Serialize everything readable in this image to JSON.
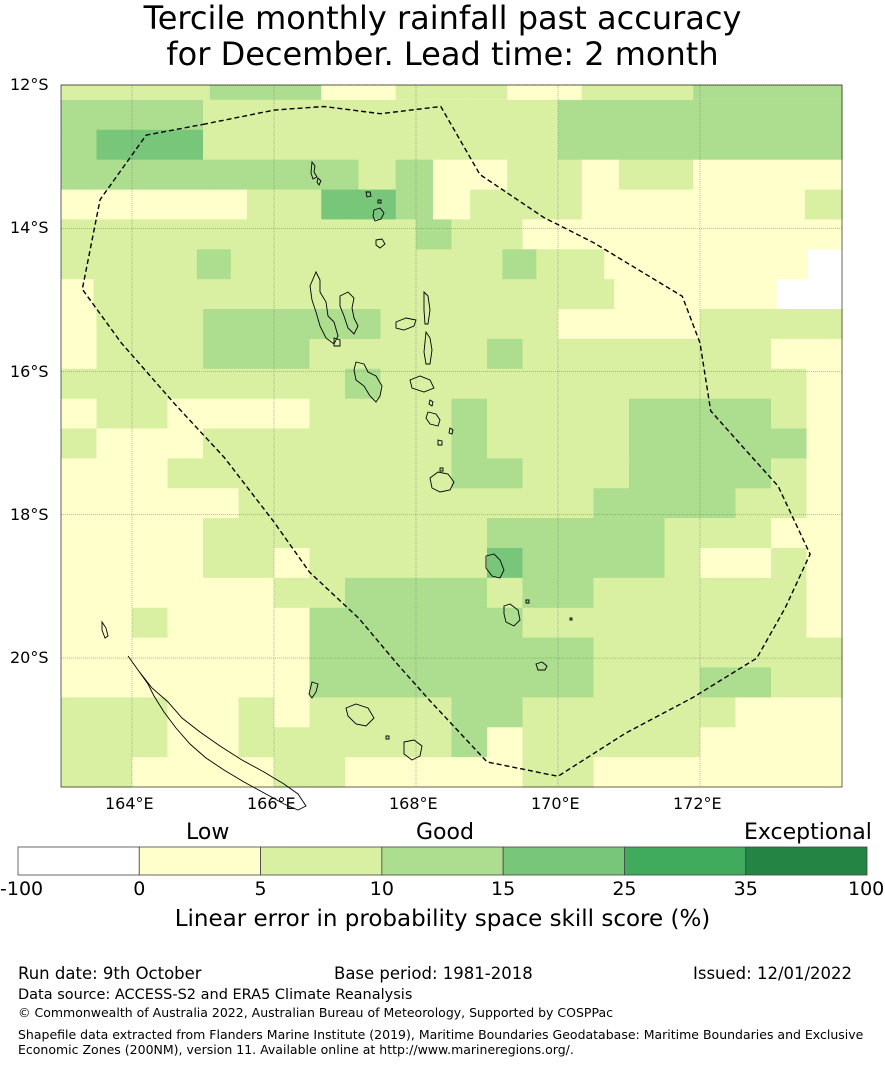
{
  "title": {
    "line1": "Tercile monthly rainfall past accuracy",
    "line2": "for December. Lead time: 2 month"
  },
  "map": {
    "lat_range": [
      -21.8,
      -12.0
    ],
    "lon_range": [
      163.0,
      174.0
    ],
    "lat_labels": [
      {
        "lat": -12,
        "text": "12°S"
      },
      {
        "lat": -14,
        "text": "14°S"
      },
      {
        "lat": -16,
        "text": "16°S"
      },
      {
        "lat": -18,
        "text": "18°S"
      },
      {
        "lat": -20,
        "text": "20°S"
      }
    ],
    "lon_labels": [
      {
        "lon": 164,
        "text": "164°E"
      },
      {
        "lon": 166,
        "text": "166°E"
      },
      {
        "lon": 168,
        "text": "168°E"
      },
      {
        "lon": 170,
        "text": "170°E"
      },
      {
        "lon": 172,
        "text": "172°E"
      }
    ],
    "grid_rows_top_to_bottom": [
      "c3333444dd333dd3334444",
      "c4444333333333344444444",
      "c4555333333333344444444",
      "c4444444434cc33c3322c2",
      "c2222233554d3332222223",
      "c3333333333433222222222",
      "c3333433333333433222222a",
      "c2333333333333333322222aa",
      "c2333444443333322223333",
      "c2333444333334333333322",
      "c3333333343333333333332",
      "c2332222333343333444432",
      "c3222333333343333444442",
      "c2223333333344333444432",
      "c2222233333333334444332",
      "c2222333333334444433322",
      "c2222332333335444432232",
      "c2222223344443443333332",
      "c2232222444444333333332",
      "c2222222444444443333333",
      "c2222222444444443334433",
      "c3332232333344333333222",
      "c3332233333342333332222",
      "c3322223322222332222222"
    ],
    "cell_deg": 0.5,
    "boundary_lonlat": [
      [
        165.0,
        -12.55
      ],
      [
        166.0,
        -12.35
      ],
      [
        166.7,
        -12.3
      ],
      [
        167.5,
        -12.4
      ],
      [
        168.35,
        -12.3
      ],
      [
        168.9,
        -13.25
      ],
      [
        169.8,
        -13.85
      ],
      [
        170.5,
        -14.2
      ],
      [
        171.0,
        -14.5
      ],
      [
        171.75,
        -14.95
      ],
      [
        172.0,
        -15.6
      ],
      [
        172.15,
        -16.55
      ],
      [
        172.6,
        -17.05
      ],
      [
        173.1,
        -17.6
      ],
      [
        173.55,
        -18.55
      ],
      [
        173.2,
        -19.3
      ],
      [
        172.8,
        -20.0
      ],
      [
        171.9,
        -20.55
      ],
      [
        170.95,
        -21.05
      ],
      [
        170.0,
        -21.65
      ],
      [
        169.0,
        -21.45
      ],
      [
        168.2,
        -20.6
      ],
      [
        167.75,
        -20.1
      ],
      [
        167.2,
        -19.45
      ],
      [
        166.5,
        -18.8
      ],
      [
        166.0,
        -18.1
      ],
      [
        165.3,
        -17.2
      ],
      [
        164.6,
        -16.45
      ],
      [
        163.85,
        -15.6
      ],
      [
        163.3,
        -14.85
      ],
      [
        163.55,
        -13.6
      ],
      [
        164.2,
        -12.7
      ],
      [
        165.0,
        -12.55
      ]
    ]
  },
  "colorbar": {
    "categories": {
      "low": "Low",
      "good": "Good",
      "exceptional": "Exceptional"
    },
    "bins": [
      {
        "from": -100,
        "to": 0,
        "color": "#ffffff"
      },
      {
        "from": 0,
        "to": 5,
        "color": "#ffffcc"
      },
      {
        "from": 5,
        "to": 10,
        "color": "#d9f0a3"
      },
      {
        "from": 10,
        "to": 15,
        "color": "#addd8e"
      },
      {
        "from": 15,
        "to": 25,
        "color": "#78c679"
      },
      {
        "from": 25,
        "to": 35,
        "color": "#41ab5d"
      },
      {
        "from": 35,
        "to": 100,
        "color": "#238443"
      }
    ],
    "ticks": [
      "-100",
      "0",
      "5",
      "10",
      "15",
      "25",
      "35",
      "100"
    ],
    "label": "Linear error in probability space skill score (%)"
  },
  "footer": {
    "run_date": "Run date: 9th October",
    "base_period": "Base period: 1981-2018",
    "issued": "Issued: 12/01/2022",
    "data_source": "Data source: ACCESS-S2 and ERA5 Climate Reanalysis",
    "copyright": "© Commonwealth of Australia 2022, Australian Bureau of Meteorology, Supported by COSPPac",
    "shapefile_line1": "Shapefile data extracted from Flanders Marine Institute (2019), Maritime Boundaries Geodatabase: Maritime Boundaries and Exclusive",
    "shapefile_line2": "Economic Zones (200NM), version 11. Available online at http://www.marineregions.org/."
  }
}
